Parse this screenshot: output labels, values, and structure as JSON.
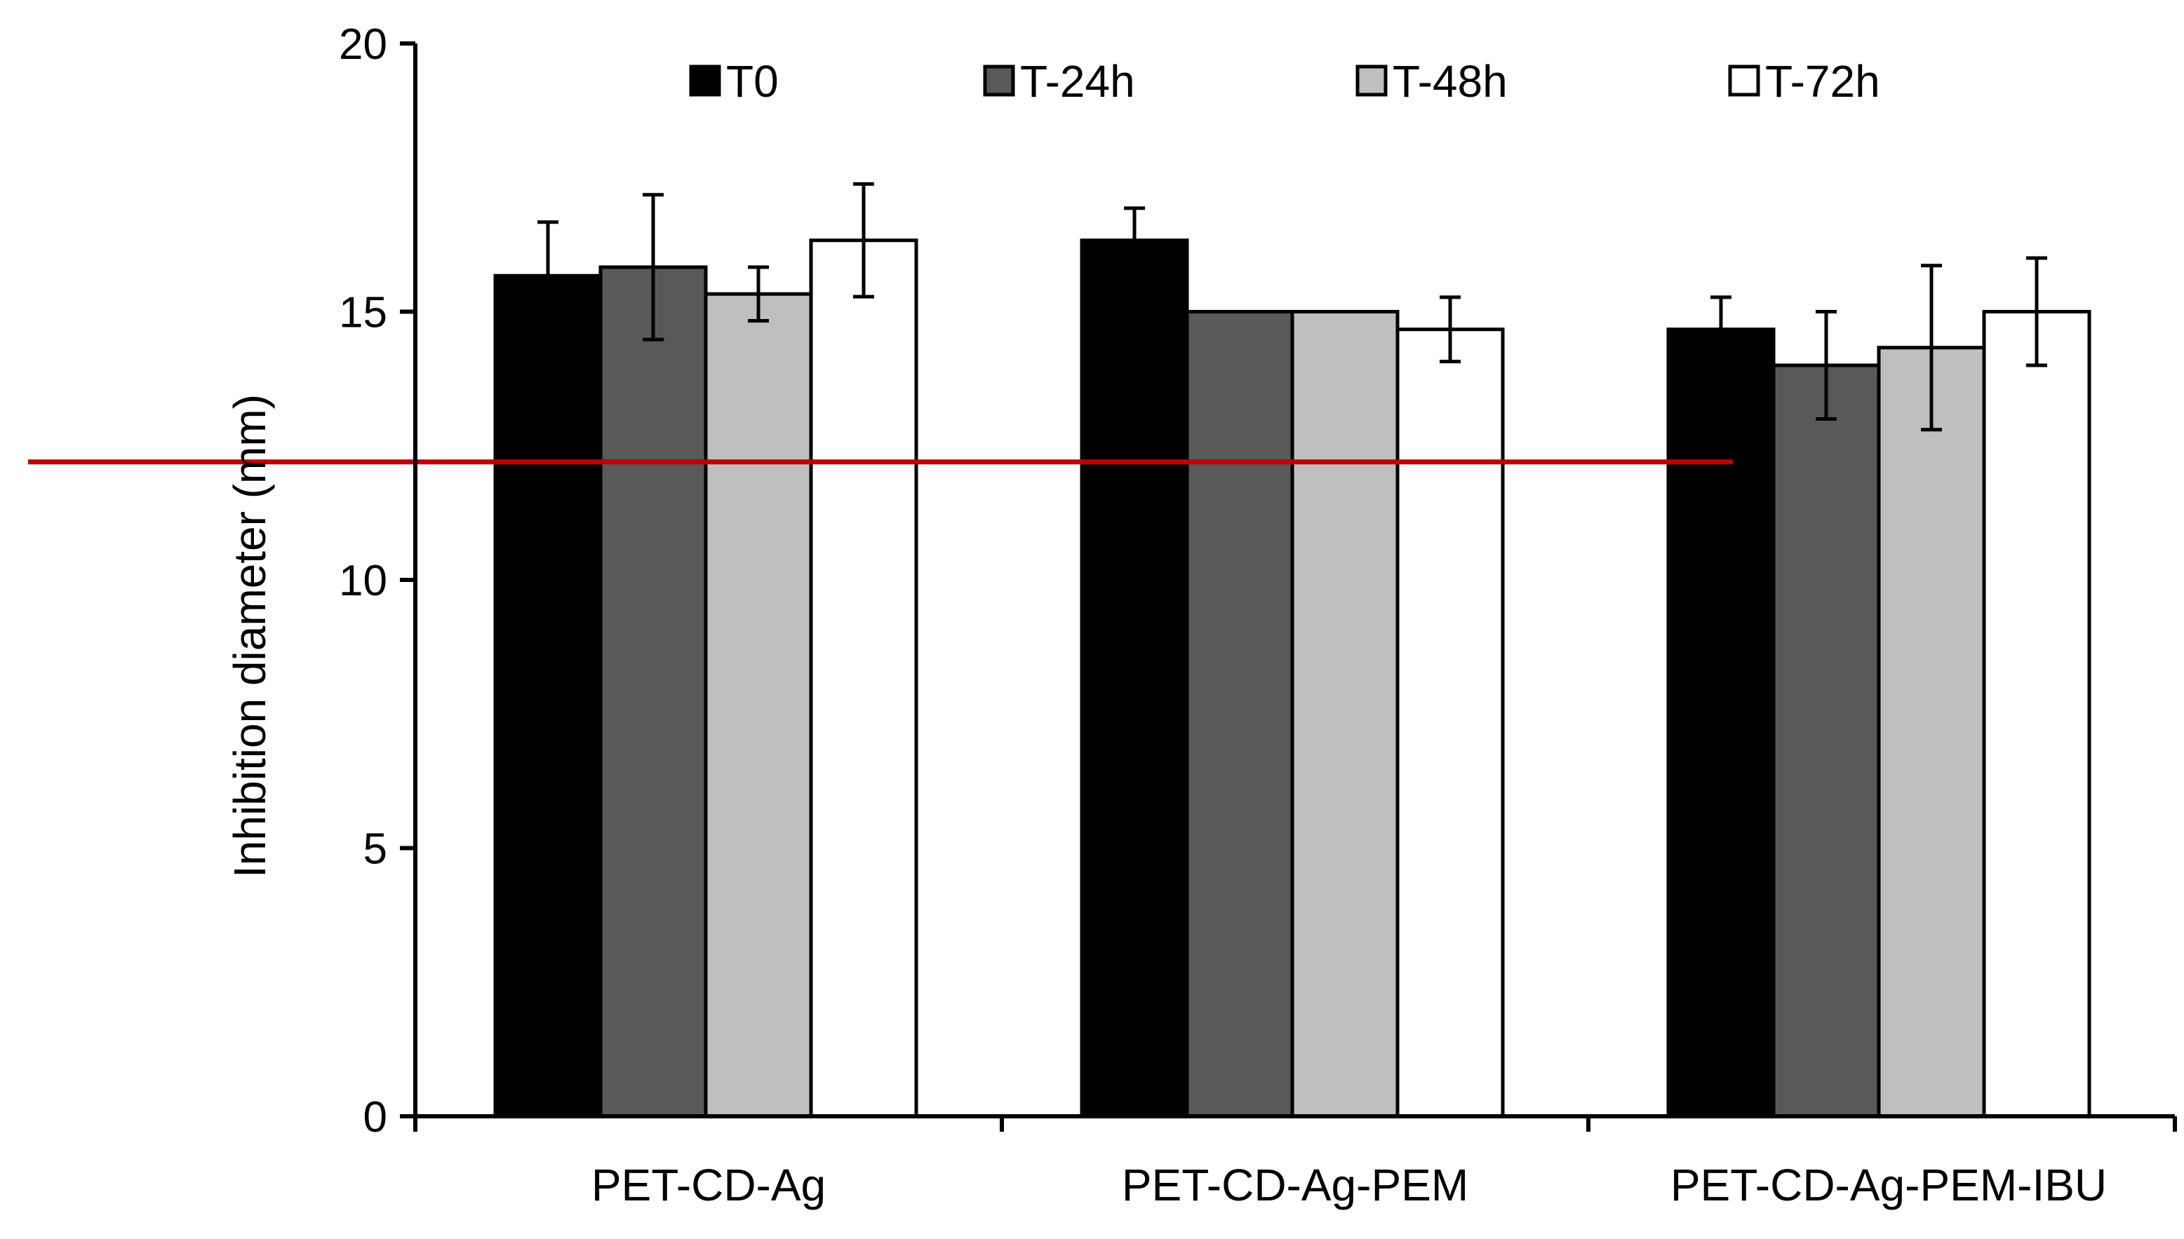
{
  "chart_data": {
    "type": "bar",
    "title": "",
    "xlabel": "",
    "ylabel": "Inhibition diameter (mm)",
    "ylim": [
      0,
      20
    ],
    "yticks": [
      0,
      5,
      10,
      15,
      20
    ],
    "grid": false,
    "legend_position": "top",
    "categories": [
      "PET-CD-Ag",
      "PET-CD-Ag-PEM",
      "PET-CD-Ag-PEM-IBU"
    ],
    "series": [
      {
        "name": "T0",
        "color": "#000000",
        "values": [
          15.67,
          16.33,
          14.67
        ],
        "errors": [
          1.0,
          0.6,
          0.6
        ]
      },
      {
        "name": "T-24h",
        "color": "#595959",
        "values": [
          15.83,
          15.0,
          14.0
        ],
        "errors": [
          1.35,
          0.0,
          1.0
        ]
      },
      {
        "name": "T-48h",
        "color": "#bfbfbf",
        "values": [
          15.33,
          15.0,
          14.33
        ],
        "errors": [
          0.5,
          0.0,
          1.53
        ]
      },
      {
        "name": "T-72h",
        "color": "#ffffff",
        "values": [
          16.33,
          14.67,
          15.0
        ],
        "errors": [
          1.05,
          0.6,
          1.0
        ]
      }
    ],
    "reference_line": {
      "y": 12.2,
      "color": "#c00000",
      "span": "from left edge through PET-CD-Ag-PEM group"
    }
  }
}
